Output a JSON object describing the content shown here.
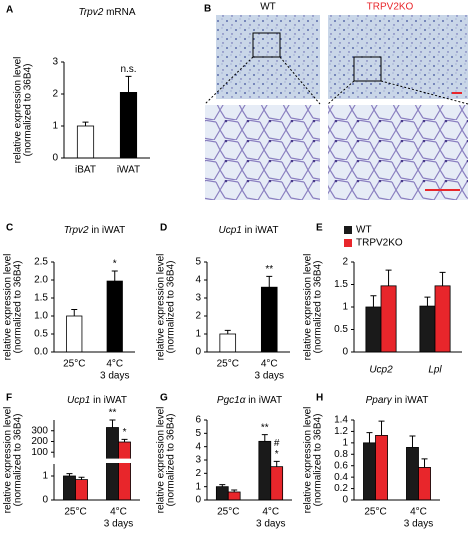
{
  "chart_data": [
    {
      "type": "bar",
      "panel": "A",
      "title_italic": "Trpv2",
      "title": "mRNA",
      "categories": [
        "iBAT",
        "iWAT"
      ],
      "series": [
        {
          "colors": [
            "#ffffff",
            "#000000"
          ],
          "values": [
            1.0,
            2.05
          ],
          "errors": [
            0.12,
            0.5
          ]
        }
      ],
      "ylim": [
        0,
        3
      ],
      "yticks": [
        0,
        1,
        2,
        3
      ],
      "ylabel": [
        "relative expression level",
        "(normalized to 36B4)"
      ],
      "annotations": [
        {
          "text": "n.s.",
          "series": 0,
          "index": 1
        }
      ]
    },
    {
      "type": "bar",
      "panel": "C",
      "title_italic": "Trpv2",
      "title": "in iWAT",
      "categories": [
        "25°C",
        "4°C"
      ],
      "x_note": "3 days",
      "series": [
        {
          "colors": [
            "#ffffff",
            "#000000"
          ],
          "values": [
            1.0,
            1.97
          ],
          "errors": [
            0.18,
            0.28
          ]
        }
      ],
      "ylim": [
        0,
        2.5
      ],
      "yticks": [
        {
          "value": 0,
          "label": "0.0"
        },
        0.5,
        {
          "value": 1,
          "label": "1.0"
        },
        1.5,
        {
          "value": 2,
          "label": "2.0"
        },
        2.5
      ],
      "ylabel": [
        "relative expression level",
        "(normalized to 36B4)"
      ],
      "annotations": [
        {
          "text": "*",
          "series": 0,
          "index": 1
        }
      ]
    },
    {
      "type": "bar",
      "panel": "D",
      "title_italic": "Ucp1",
      "title": "in iWAT",
      "categories": [
        "25°C",
        "4°C"
      ],
      "x_note": "3 days",
      "series": [
        {
          "colors": [
            "#ffffff",
            "#000000"
          ],
          "values": [
            1.0,
            3.6
          ],
          "errors": [
            0.2,
            0.6
          ]
        }
      ],
      "ylim": [
        0,
        5
      ],
      "yticks": [
        0,
        1,
        2,
        3,
        4,
        5
      ],
      "ylabel": [
        "relative expression level",
        "(normalized to 36B4)"
      ],
      "annotations": [
        {
          "text": "**",
          "series": 0,
          "index": 1
        }
      ]
    },
    {
      "type": "bar",
      "panel": "E",
      "categories": [
        "Ucp2",
        "Lpl"
      ],
      "category_italic": true,
      "legend": true,
      "series": [
        {
          "name": "WT",
          "color": "#1a1a1a",
          "values": [
            1.0,
            1.02
          ],
          "errors": [
            0.25,
            0.2
          ]
        },
        {
          "name": "TRPV2KO",
          "color": "#e8262b",
          "values": [
            1.47,
            1.47
          ],
          "errors": [
            0.35,
            0.3
          ]
        }
      ],
      "ylim": [
        0,
        2
      ],
      "yticks": [
        0,
        0.5,
        1,
        1.5,
        2
      ],
      "ylabel": [
        "relative expression level",
        "(normalized to 36B4)"
      ]
    },
    {
      "type": "bar",
      "panel": "F",
      "title_italic": "Ucp1",
      "title": "in iWAT",
      "categories": [
        "25°C",
        "4°C"
      ],
      "x_note": "3 days",
      "series": [
        {
          "color": "#1a1a1a",
          "values": [
            1.0,
            330
          ],
          "errors": [
            0.1,
            70
          ]
        },
        {
          "color": "#e8262b",
          "values": [
            0.85,
            195
          ],
          "errors": [
            0.1,
            25
          ]
        }
      ],
      "ylim": [
        0,
        400
      ],
      "y_break": [
        1.5,
        50
      ],
      "yticks": [
        0,
        1,
        100,
        200,
        300
      ],
      "ylabel": [
        "relative expression level",
        "(normalized to 36B4)"
      ],
      "annotations": [
        {
          "text": "**",
          "series": 0,
          "index": 1
        },
        {
          "text": "*",
          "series": 1,
          "index": 1
        }
      ]
    },
    {
      "type": "bar",
      "panel": "G",
      "title_italic": "Pgc1α",
      "title": "in iWAT",
      "categories": [
        "25°C",
        "4°C"
      ],
      "x_note": "3 days",
      "series": [
        {
          "color": "#1a1a1a",
          "values": [
            1.0,
            4.4
          ],
          "errors": [
            0.15,
            0.5
          ]
        },
        {
          "color": "#e8262b",
          "values": [
            0.6,
            2.5
          ],
          "errors": [
            0.15,
            0.4
          ]
        }
      ],
      "ylim": [
        0,
        6
      ],
      "yticks": [
        0,
        1,
        2,
        3,
        4,
        5,
        6
      ],
      "ylabel": [
        "relative expression level",
        "(normalized to 36B4)"
      ],
      "annotations": [
        {
          "text": "**",
          "series": 0,
          "index": 1
        },
        {
          "text": "*",
          "series": 1,
          "index": 1
        },
        {
          "text": "#",
          "series": 1,
          "index": 1
        }
      ]
    },
    {
      "type": "bar",
      "panel": "H",
      "title_italic": "Pparγ",
      "title": "in iWAT",
      "categories": [
        "25°C",
        "4°C"
      ],
      "x_note": "3 days",
      "series": [
        {
          "color": "#1a1a1a",
          "values": [
            1.0,
            0.92
          ],
          "errors": [
            0.18,
            0.2
          ]
        },
        {
          "color": "#e8262b",
          "values": [
            1.13,
            0.57
          ],
          "errors": [
            0.25,
            0.15
          ]
        }
      ],
      "ylim": [
        0,
        1.4
      ],
      "yticks": [
        0,
        0.2,
        0.4,
        0.6,
        0.8,
        1,
        1.2,
        1.4
      ],
      "ylabel": [
        "relative expression level",
        "(normalized to 36B4)"
      ]
    }
  ],
  "panel_b": {
    "letter": "B",
    "labels": [
      "WT",
      "TRPV2KO"
    ]
  }
}
